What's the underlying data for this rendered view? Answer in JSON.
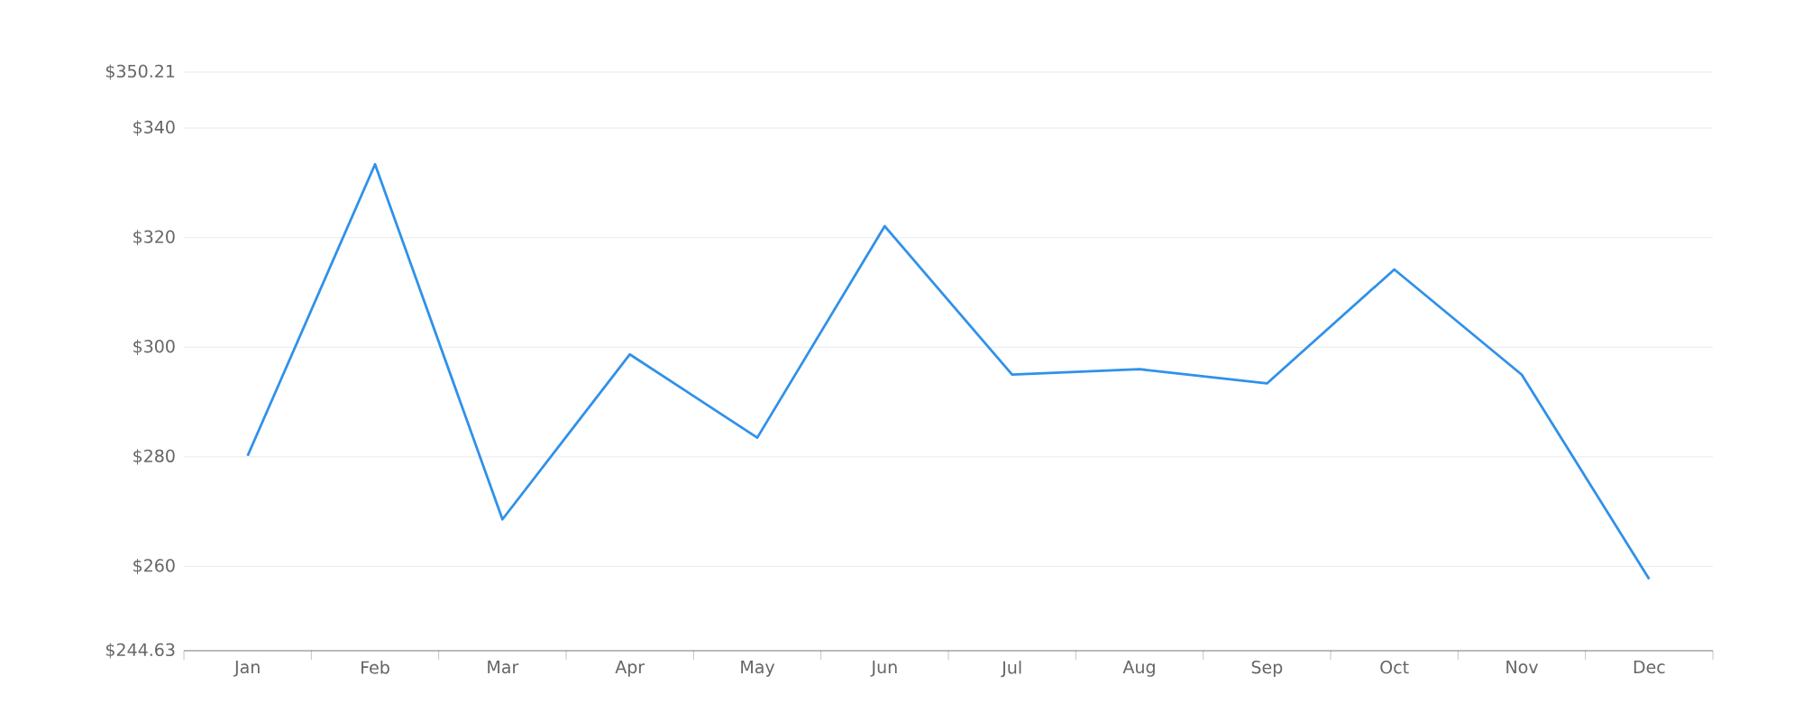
{
  "chart_data": {
    "type": "line",
    "categories": [
      "Jan",
      "Feb",
      "Mar",
      "Apr",
      "May",
      "Jun",
      "Jul",
      "Aug",
      "Sep",
      "Oct",
      "Nov",
      "Dec"
    ],
    "values": [
      280.2,
      333.4,
      268.6,
      298.7,
      283.5,
      322.1,
      295.0,
      296.0,
      293.4,
      314.2,
      295.0,
      257.7
    ],
    "color": "#3091e9",
    "ylim": [
      244.63,
      350.21
    ],
    "yticks": [
      {
        "value": 244.63,
        "label": "$244.63"
      },
      {
        "value": 260,
        "label": "$260"
      },
      {
        "value": 280,
        "label": "$280"
      },
      {
        "value": 300,
        "label": "$300"
      },
      {
        "value": 320,
        "label": "$320"
      },
      {
        "value": 340,
        "label": "$340"
      },
      {
        "value": 350.21,
        "label": "$350.21"
      }
    ],
    "grid": "y",
    "marker": "none",
    "line_style": "solid"
  }
}
